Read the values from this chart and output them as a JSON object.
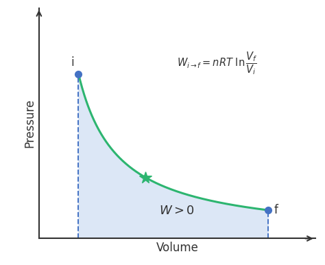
{
  "xlabel": "Volume",
  "ylabel": "Pressure",
  "curve_color": "#2db570",
  "fill_color": "#c5d8f0",
  "fill_alpha": 0.6,
  "dashed_color": "#4472c4",
  "point_color": "#4472c4",
  "midpoint_color": "#2db570",
  "axis_color": "#333333",
  "x_i": 1.0,
  "x_f": 5.8,
  "x_mid": 2.7,
  "C": 5.0,
  "xlim": [
    0.0,
    7.0
  ],
  "ylim": [
    0.0,
    7.0
  ],
  "curve_linewidth": 2.2,
  "dashed_linewidth": 1.4,
  "background_color": "#ffffff"
}
